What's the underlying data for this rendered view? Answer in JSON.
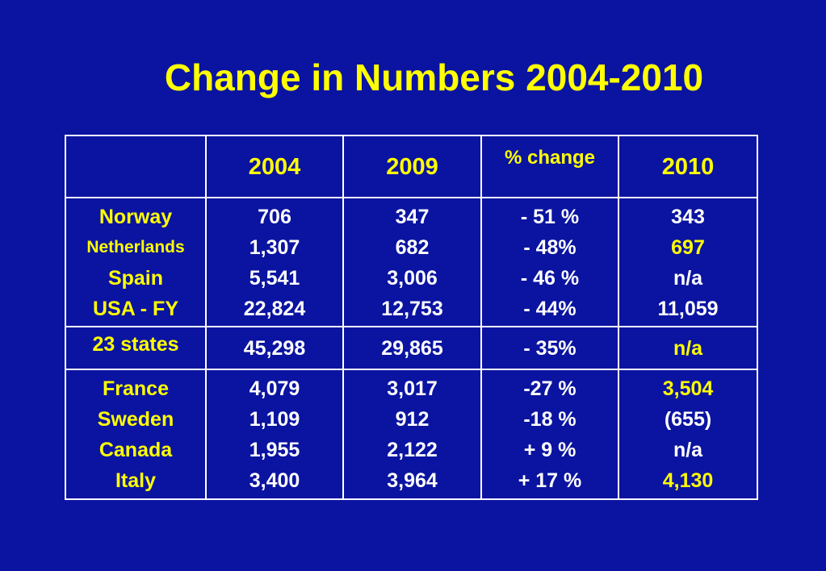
{
  "title": "Change in Numbers 2004-2010",
  "columns": [
    "",
    "2004",
    "2009",
    "% change",
    "2010"
  ],
  "groups": [
    {
      "countries": [
        "Norway",
        "Netherlands",
        "Spain",
        "USA - FY"
      ],
      "v2004": [
        "706",
        "1,307",
        "5,541",
        "22,824"
      ],
      "v2009": [
        "347",
        "682",
        "3,006",
        "12,753"
      ],
      "pct": [
        "- 51 %",
        "- 48%",
        "- 46 %",
        "- 44%"
      ],
      "v2010": [
        "343",
        "697",
        "n/a",
        "11,059"
      ]
    },
    {
      "countries": [
        "23 states"
      ],
      "v2004": [
        "45,298"
      ],
      "v2009": [
        "29,865"
      ],
      "pct": [
        "- 35%"
      ],
      "v2010": [
        "n/a"
      ]
    },
    {
      "countries": [
        "France",
        "Sweden",
        "Canada",
        "Italy"
      ],
      "v2004": [
        "4,079",
        "1,109",
        "1,955",
        "3,400"
      ],
      "v2009": [
        "3,017",
        "912",
        "2,122",
        "3,964"
      ],
      "pct": [
        "-27 %",
        "-18 %",
        "+ 9 %",
        "+ 17 %"
      ],
      "v2010": [
        "3,504",
        "(655)",
        "n/a",
        "4,130"
      ]
    }
  ],
  "colors": {
    "background": "#0b14a0",
    "highlight": "#ffff00",
    "text": "#ffffff",
    "border": "#ffffff"
  }
}
